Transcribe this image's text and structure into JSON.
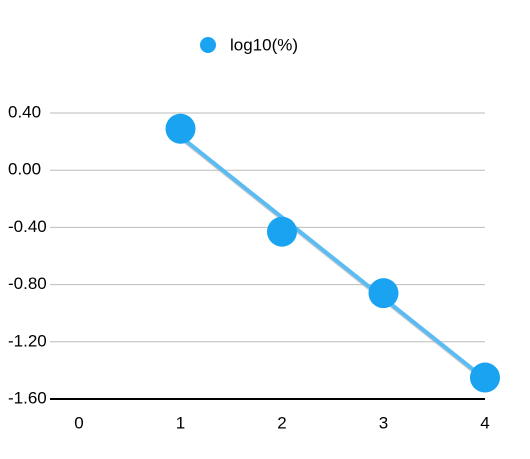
{
  "chart_data": {
    "type": "scatter",
    "series": [
      {
        "name": "log10(%)",
        "color": "#1aa3f0",
        "x": [
          1,
          2,
          3,
          4
        ],
        "values": [
          0.29,
          -0.43,
          -0.86,
          -1.45
        ]
      }
    ],
    "xlim": [
      0,
      4
    ],
    "xticks": [
      0,
      1,
      2,
      3,
      4
    ],
    "ylim": [
      -1.6,
      0.4
    ],
    "yticks": [
      {
        "value": 0.4,
        "label": "0.40"
      },
      {
        "value": 0,
        "label": "0.00"
      },
      {
        "value": -0.4,
        "label": "-0.40"
      },
      {
        "value": -0.8,
        "label": "-0.80"
      },
      {
        "value": -1.2,
        "label": "-1.20"
      },
      {
        "value": -1.6,
        "label": "-1.60"
      }
    ],
    "grid": true,
    "trendline": true,
    "legend": "top"
  }
}
